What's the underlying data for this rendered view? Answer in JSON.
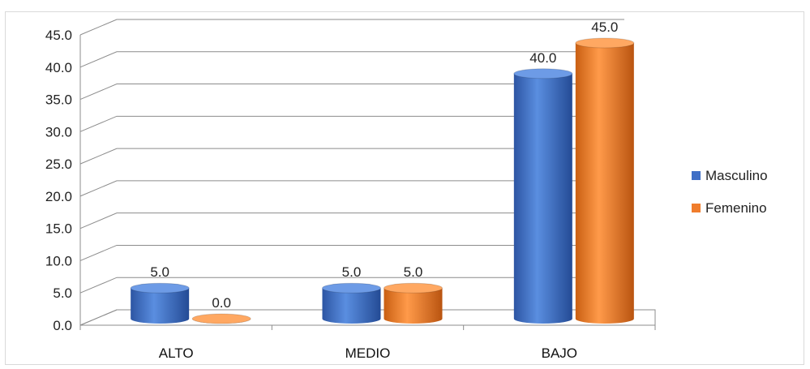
{
  "chart_data": {
    "type": "bar",
    "title": "",
    "xlabel": "",
    "ylabel": "",
    "categories": [
      "ALTO",
      "MEDIO",
      "BAJO"
    ],
    "series": [
      {
        "name": "Masculino",
        "values": [
          5.0,
          5.0,
          40.0
        ],
        "color": "#3f6fc6"
      },
      {
        "name": "Femenino",
        "values": [
          0.0,
          5.0,
          45.0
        ],
        "color": "#f07d2c"
      }
    ],
    "ylim": [
      0,
      45
    ],
    "yticks": [
      "0.0",
      "5.0",
      "10.0",
      "15.0",
      "20.0",
      "25.0",
      "30.0",
      "35.0",
      "40.0",
      "45.0"
    ],
    "data_labels": [
      [
        "5.0",
        "5.0",
        "40.0"
      ],
      [
        "0.0",
        "5.0",
        "45.0"
      ]
    ],
    "grid": true,
    "style": "3d-cylinder",
    "legend_position": "right"
  }
}
